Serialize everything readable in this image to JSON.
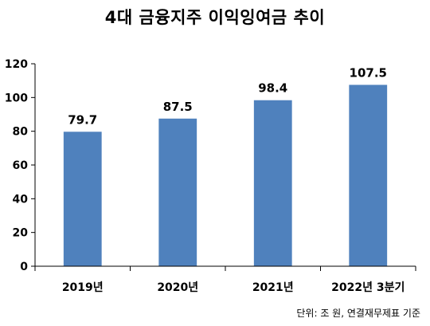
{
  "title": "4대 금융지주 이익잉여금 추이",
  "note": "단위: 조 원, 연결재무제표 기준",
  "chart_data": {
    "type": "bar",
    "title": "4대 금융지주 이익잉여금 추이",
    "categories": [
      "2019년",
      "2020년",
      "2021년",
      "2022년 3분기"
    ],
    "values": [
      79.7,
      87.5,
      98.4,
      107.5
    ],
    "data_labels": [
      "79.7",
      "87.5",
      "98.4",
      "107.5"
    ],
    "ylim": [
      0,
      120
    ],
    "yticks": [
      0,
      20,
      40,
      60,
      80,
      100,
      120
    ],
    "grid": false,
    "bar_color": "#4f81bd",
    "xlabel": "",
    "ylabel": ""
  }
}
